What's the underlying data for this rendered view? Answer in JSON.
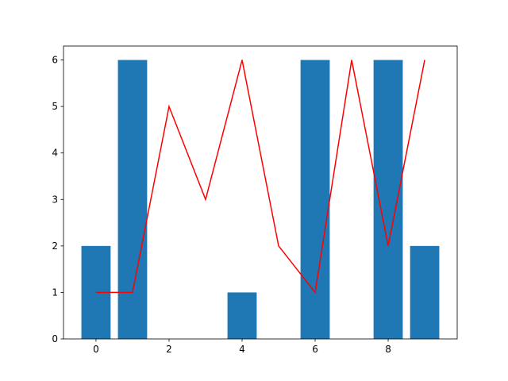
{
  "chart_data": {
    "type": "bar",
    "x": [
      0,
      1,
      2,
      3,
      4,
      5,
      6,
      7,
      8,
      9
    ],
    "series": [
      {
        "type": "bar",
        "color": "#1f77b4",
        "values": [
          2,
          6,
          0,
          0,
          1,
          0,
          6,
          0,
          6,
          2
        ]
      },
      {
        "type": "line",
        "color": "#ff0000",
        "values": [
          1,
          1,
          5,
          3,
          6,
          2,
          1,
          6,
          2,
          6
        ]
      }
    ],
    "xlim": [
      -0.89,
      9.89
    ],
    "ylim": [
      0,
      6.3
    ],
    "xticks": [
      0,
      2,
      4,
      6,
      8
    ],
    "yticks": [
      0,
      1,
      2,
      3,
      4,
      5,
      6
    ]
  }
}
